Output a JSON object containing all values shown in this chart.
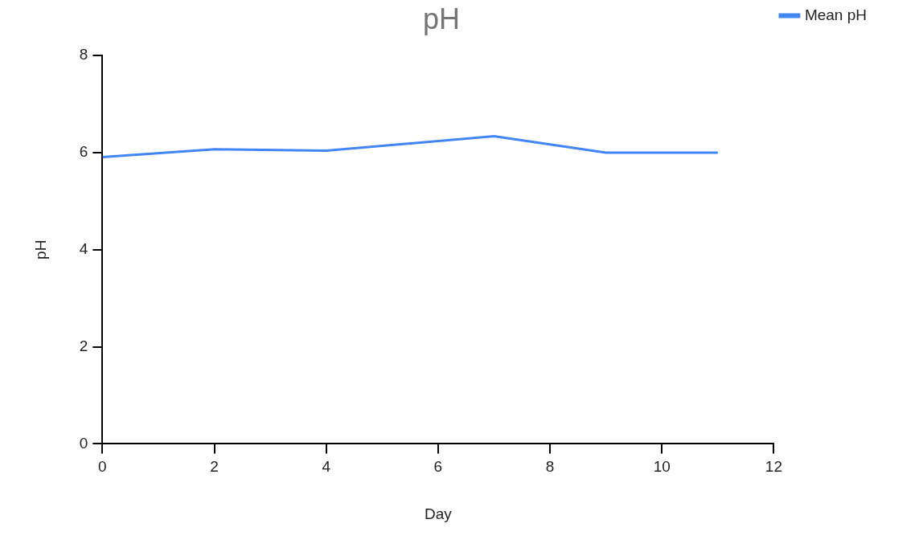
{
  "chart_data": {
    "type": "line",
    "title": "pH",
    "xlabel": "Day",
    "ylabel": "pH",
    "x": [
      0,
      2,
      4,
      7,
      9,
      11
    ],
    "series": [
      {
        "name": "Mean pH",
        "color": "#4285f4",
        "values": [
          5.91,
          6.07,
          6.04,
          6.34,
          6.0,
          6.0
        ]
      }
    ],
    "xlim": [
      0,
      12
    ],
    "xticks": [
      0,
      2,
      4,
      6,
      8,
      10,
      12
    ],
    "ylim": [
      0,
      8
    ],
    "yticks": [
      0,
      2,
      4,
      6,
      8
    ],
    "grid": false,
    "legend": "top right",
    "marker": "none",
    "line_style": "solid"
  }
}
